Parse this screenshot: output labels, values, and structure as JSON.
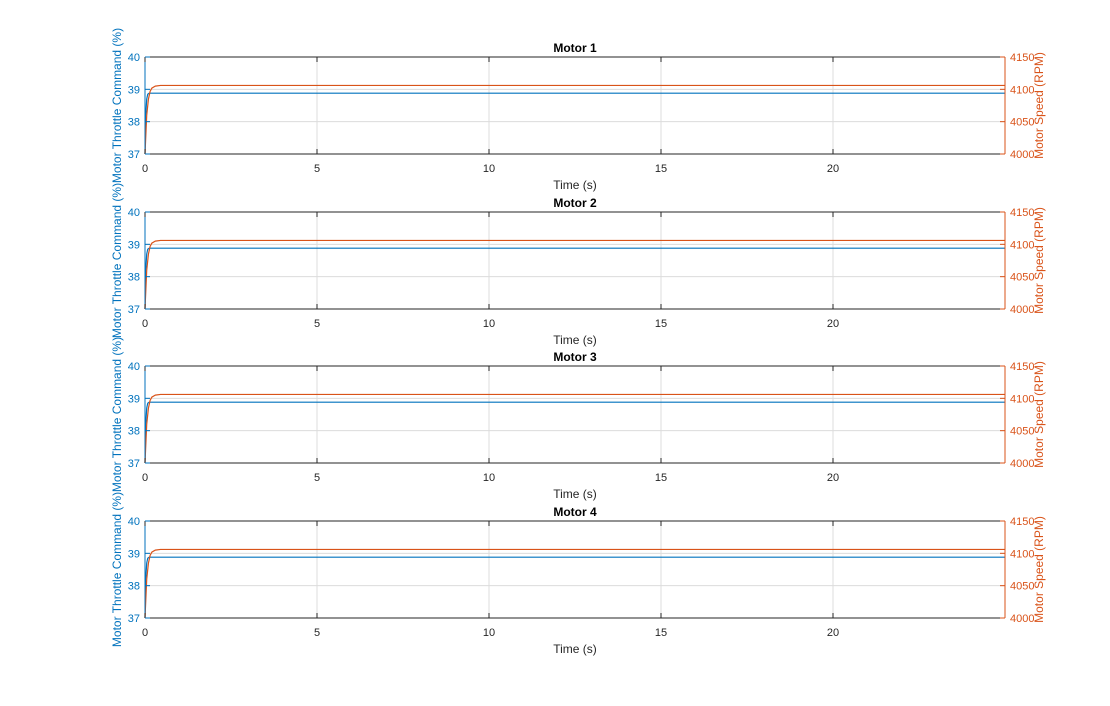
{
  "colors": {
    "throttle": "#0072BD",
    "speed": "#D95319",
    "axis": "#262626",
    "grid": "#DCDCDC"
  },
  "shared": {
    "xlabel": "Time (s)",
    "ylabel_left": "Motor Throttle Command (%)",
    "ylabel_right": "Motor Speed (RPM)"
  },
  "chart_data": [
    {
      "type": "line",
      "title": "Motor 1",
      "xlabel": "Time (s)",
      "ylabel": "Motor Throttle Command (%)",
      "ylabel_right": "Motor Speed (RPM)",
      "xlim": [
        0,
        25
      ],
      "ylim": [
        37,
        40
      ],
      "ylim_right": [
        4000,
        4150
      ],
      "xticks": [
        0,
        5,
        10,
        15,
        20
      ],
      "yticks": [
        37,
        38,
        39,
        40
      ],
      "yticks_right": [
        4000,
        4050,
        4100,
        4150
      ],
      "grid": true,
      "series": [
        {
          "axis": "left",
          "color": "#0072BD",
          "x": [
            0,
            0.02,
            0.05,
            0.08,
            0.12,
            0.2,
            25
          ],
          "y": [
            37,
            38.2,
            38.7,
            38.85,
            38.88,
            38.88,
            38.88
          ]
        },
        {
          "axis": "right",
          "color": "#D95319",
          "x": [
            0,
            0.05,
            0.1,
            0.15,
            0.2,
            0.3,
            0.45,
            0.6,
            25
          ],
          "y": [
            4000,
            4060,
            4085,
            4097,
            4102,
            4105,
            4106,
            4106,
            4106
          ]
        }
      ]
    },
    {
      "type": "line",
      "title": "Motor 2",
      "xlabel": "Time (s)",
      "ylabel": "Motor Throttle Command (%)",
      "ylabel_right": "Motor Speed (RPM)",
      "xlim": [
        0,
        25
      ],
      "ylim": [
        37,
        40
      ],
      "ylim_right": [
        4000,
        4150
      ],
      "xticks": [
        0,
        5,
        10,
        15,
        20
      ],
      "yticks": [
        37,
        38,
        39,
        40
      ],
      "yticks_right": [
        4000,
        4050,
        4100,
        4150
      ],
      "grid": true,
      "series": [
        {
          "axis": "left",
          "color": "#0072BD",
          "x": [
            0,
            0.02,
            0.05,
            0.08,
            0.12,
            0.2,
            25
          ],
          "y": [
            37,
            38.2,
            38.7,
            38.85,
            38.88,
            38.88,
            38.88
          ]
        },
        {
          "axis": "right",
          "color": "#D95319",
          "x": [
            0,
            0.05,
            0.1,
            0.15,
            0.2,
            0.3,
            0.45,
            0.6,
            25
          ],
          "y": [
            4000,
            4060,
            4085,
            4097,
            4102,
            4105,
            4106,
            4106,
            4106
          ]
        }
      ]
    },
    {
      "type": "line",
      "title": "Motor 3",
      "xlabel": "Time (s)",
      "ylabel": "Motor Throttle Command (%)",
      "ylabel_right": "Motor Speed (RPM)",
      "xlim": [
        0,
        25
      ],
      "ylim": [
        37,
        40
      ],
      "ylim_right": [
        4000,
        4150
      ],
      "xticks": [
        0,
        5,
        10,
        15,
        20
      ],
      "yticks": [
        37,
        38,
        39,
        40
      ],
      "yticks_right": [
        4000,
        4050,
        4100,
        4150
      ],
      "grid": true,
      "series": [
        {
          "axis": "left",
          "color": "#0072BD",
          "x": [
            0,
            0.02,
            0.05,
            0.08,
            0.12,
            0.2,
            25
          ],
          "y": [
            37,
            38.2,
            38.7,
            38.85,
            38.88,
            38.88,
            38.88
          ]
        },
        {
          "axis": "right",
          "color": "#D95319",
          "x": [
            0,
            0.05,
            0.1,
            0.15,
            0.2,
            0.3,
            0.45,
            0.6,
            25
          ],
          "y": [
            4000,
            4060,
            4085,
            4097,
            4102,
            4105,
            4106,
            4106,
            4106
          ]
        }
      ]
    },
    {
      "type": "line",
      "title": "Motor 4",
      "xlabel": "Time (s)",
      "ylabel": "Motor Throttle Command (%)",
      "ylabel_right": "Motor Speed (RPM)",
      "xlim": [
        0,
        25
      ],
      "ylim": [
        37,
        40
      ],
      "ylim_right": [
        4000,
        4150
      ],
      "xticks": [
        0,
        5,
        10,
        15,
        20
      ],
      "yticks": [
        37,
        38,
        39,
        40
      ],
      "yticks_right": [
        4000,
        4050,
        4100,
        4150
      ],
      "grid": true,
      "series": [
        {
          "axis": "left",
          "color": "#0072BD",
          "x": [
            0,
            0.02,
            0.05,
            0.08,
            0.12,
            0.2,
            25
          ],
          "y": [
            37,
            38.2,
            38.7,
            38.85,
            38.88,
            38.88,
            38.88
          ]
        },
        {
          "axis": "right",
          "color": "#D95319",
          "x": [
            0,
            0.05,
            0.1,
            0.15,
            0.2,
            0.3,
            0.45,
            0.6,
            25
          ],
          "y": [
            4000,
            4060,
            4085,
            4097,
            4102,
            4105,
            4106,
            4106,
            4106
          ]
        }
      ]
    }
  ]
}
